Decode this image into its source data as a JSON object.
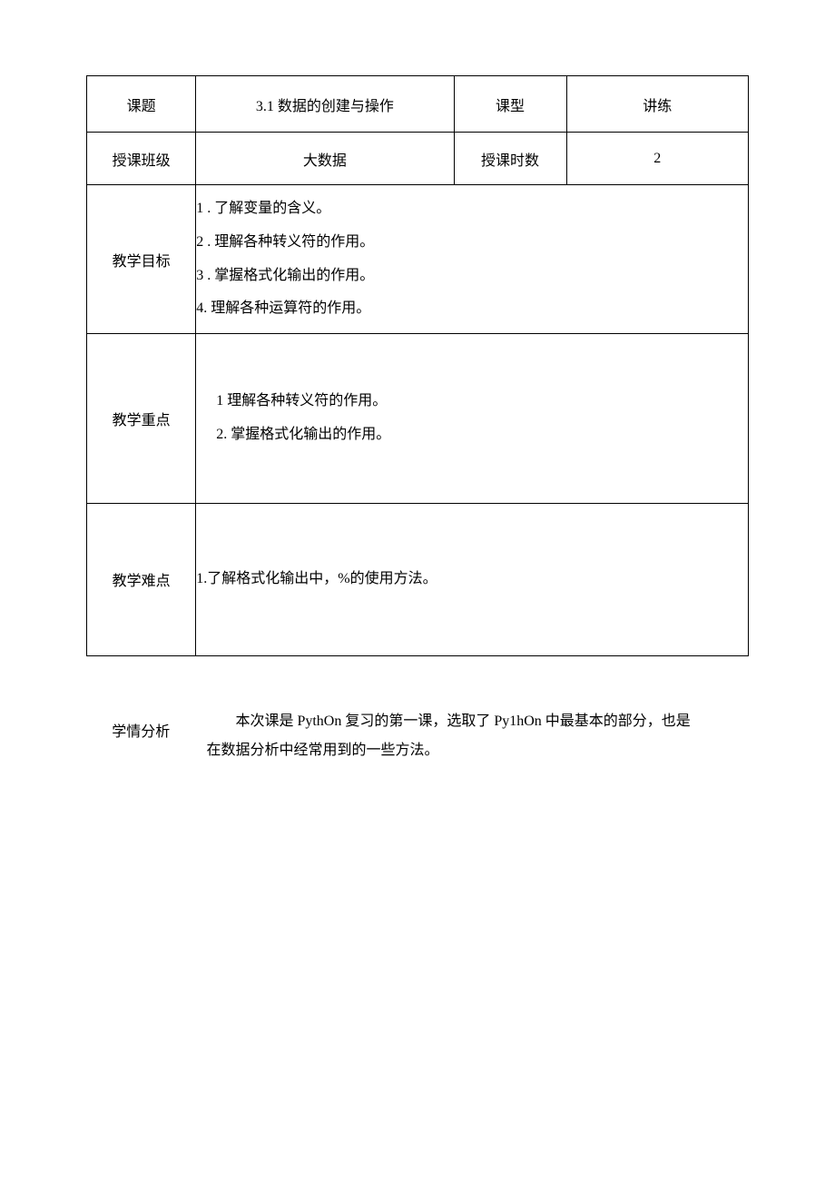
{
  "header": {
    "topic_label": "课题",
    "topic_value": "3.1 数据的创建与操作",
    "type_label": "课型",
    "type_value": "讲练"
  },
  "class_row": {
    "class_label": "授课班级",
    "class_value": "大数据",
    "hours_label": "授课时数",
    "hours_value": "2"
  },
  "goals": {
    "label": "教学目标",
    "lines": [
      "1 . 了解变量的含义。",
      "2 . 理解各种转义符的作用。",
      "3 . 掌握格式化输出的作用。",
      "4. 理解各种运算符的作用。"
    ]
  },
  "focus": {
    "label": "教学重点",
    "lines": [
      "1 理解各种转义符的作用。",
      "2. 掌握格式化输出的作用。"
    ]
  },
  "difficulty": {
    "label": "教学难点",
    "lines": [
      "1.了解格式化输出中，%的使用方法。"
    ]
  },
  "analysis": {
    "label": "学情分析",
    "text_line1": "本次课是 PythOn 复习的第一课，选取了 Py1hOn 中最基本的部分，也是",
    "text_line2": "在数据分析中经常用到的一些方法。"
  },
  "colors": {
    "border": "#000000",
    "background": "#ffffff",
    "text": "#000000"
  }
}
